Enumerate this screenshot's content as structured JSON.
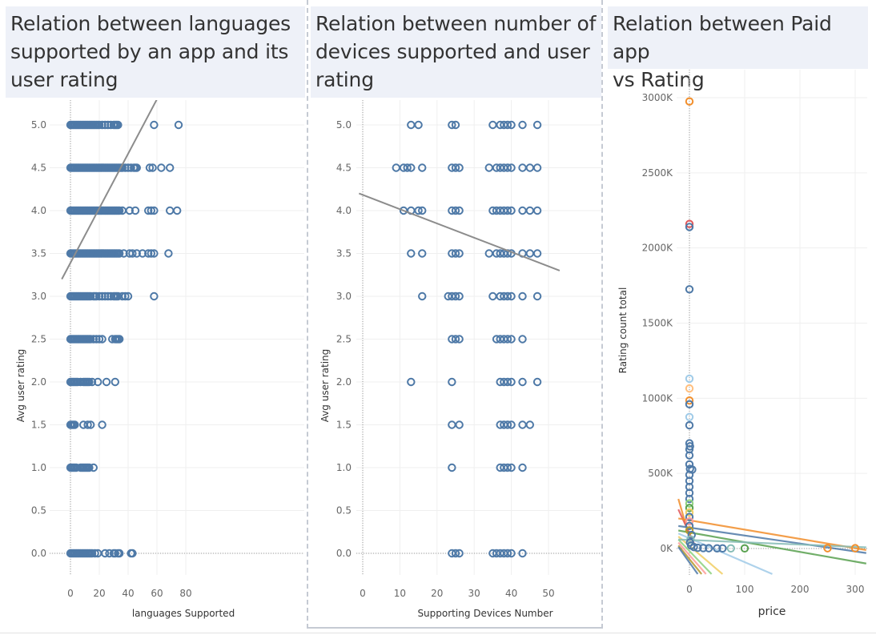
{
  "colors": {
    "point": "#4e79a7",
    "trend": "#8c8c8c",
    "title_bg": "#eef1f8",
    "grid": "#eeeeee"
  },
  "chart_data": [
    {
      "type": "scatter",
      "title": "Relation between languages supported by an app and its user rating",
      "title_lines": [
        "Relation between languages",
        "supported by an app and its",
        "user rating"
      ],
      "xlabel": "languages Supported",
      "ylabel": "Avg user rating",
      "xlim": [
        -3,
        81
      ],
      "ylim": [
        -0.2,
        5.3
      ],
      "x_ticks": [
        0,
        20,
        40,
        60,
        80
      ],
      "y_ticks": [
        0.0,
        0.5,
        1.0,
        1.5,
        2.0,
        2.5,
        3.0,
        3.5,
        4.0,
        4.5,
        5.0
      ],
      "grid": true,
      "trend_line": {
        "from": [
          -6,
          3.2
        ],
        "to": [
          60,
          5.3
        ]
      },
      "rows": [
        {
          "y": 5.0,
          "x": [
            0,
            1,
            2,
            3,
            4,
            5,
            6,
            7,
            8,
            9,
            10,
            11,
            12,
            13,
            14,
            15,
            16,
            17,
            18,
            19,
            20,
            22,
            24,
            26,
            28,
            30,
            31,
            32,
            33,
            58,
            75
          ]
        },
        {
          "y": 4.5,
          "x": [
            0,
            1,
            2,
            3,
            4,
            5,
            6,
            7,
            8,
            9,
            10,
            11,
            12,
            13,
            14,
            15,
            16,
            17,
            18,
            19,
            20,
            21,
            22,
            23,
            24,
            25,
            26,
            27,
            28,
            29,
            30,
            31,
            32,
            33,
            34,
            35,
            36,
            38,
            40,
            42,
            44,
            45,
            46,
            55,
            57,
            63,
            69
          ]
        },
        {
          "y": 4.0,
          "x": [
            0,
            1,
            2,
            3,
            4,
            5,
            6,
            7,
            8,
            9,
            10,
            11,
            12,
            13,
            14,
            15,
            16,
            17,
            18,
            19,
            20,
            21,
            22,
            23,
            24,
            25,
            26,
            27,
            28,
            29,
            30,
            31,
            32,
            33,
            34,
            36,
            41,
            45,
            54,
            56,
            58,
            69,
            74
          ]
        },
        {
          "y": 3.5,
          "x": [
            0,
            1,
            2,
            3,
            4,
            5,
            6,
            7,
            8,
            9,
            10,
            11,
            12,
            13,
            14,
            15,
            16,
            17,
            18,
            19,
            20,
            21,
            22,
            23,
            24,
            25,
            26,
            27,
            28,
            29,
            30,
            31,
            32,
            33,
            34,
            37,
            41,
            43,
            46,
            50,
            54,
            56,
            58,
            68
          ]
        },
        {
          "y": 3.0,
          "x": [
            0,
            1,
            2,
            3,
            4,
            5,
            6,
            7,
            8,
            9,
            10,
            11,
            12,
            13,
            14,
            16,
            17,
            18,
            20,
            22,
            24,
            26,
            28,
            30,
            31,
            32,
            33,
            36,
            38,
            40,
            58
          ]
        },
        {
          "y": 2.5,
          "x": [
            0,
            1,
            2,
            3,
            4,
            5,
            6,
            7,
            8,
            9,
            10,
            11,
            12,
            13,
            14,
            16,
            18,
            20,
            22,
            29,
            31,
            32,
            33,
            34
          ]
        },
        {
          "y": 2.0,
          "x": [
            0,
            1,
            2,
            3,
            4,
            5,
            7,
            9,
            10,
            11,
            12,
            13,
            15,
            19,
            25,
            31
          ]
        },
        {
          "y": 1.5,
          "x": [
            0,
            1,
            2,
            3,
            9,
            12,
            14,
            22
          ]
        },
        {
          "y": 1.0,
          "x": [
            0,
            1,
            2,
            3,
            4,
            7,
            8,
            9,
            10,
            11,
            12,
            13,
            16
          ]
        },
        {
          "y": 0.0,
          "x": [
            0,
            1,
            2,
            3,
            4,
            5,
            6,
            7,
            8,
            9,
            10,
            11,
            12,
            13,
            14,
            15,
            17,
            19,
            24,
            27,
            30,
            31,
            33,
            34,
            42,
            43
          ]
        }
      ]
    },
    {
      "type": "scatter",
      "title": "Relation between number of devices supported and user rating",
      "title_lines": [
        "Relation between number of",
        "devices supported and user",
        "rating"
      ],
      "xlabel": "Supporting Devices Number",
      "ylabel": "Avg user rating",
      "xlim": [
        0,
        51
      ],
      "ylim": [
        -0.2,
        5.3
      ],
      "x_ticks": [
        0,
        10,
        20,
        30,
        40,
        50
      ],
      "y_ticks": [
        0.0,
        0.5,
        1.0,
        1.5,
        2.0,
        2.5,
        3.0,
        3.5,
        4.0,
        4.5,
        5.0
      ],
      "grid": true,
      "trend_line": {
        "from": [
          -1,
          4.2
        ],
        "to": [
          53,
          3.3
        ]
      },
      "rows": [
        {
          "y": 5.0,
          "x": [
            13,
            15,
            24,
            25,
            35,
            37,
            38,
            39,
            40,
            43,
            47
          ]
        },
        {
          "y": 4.5,
          "x": [
            9,
            11,
            12,
            13,
            16,
            24,
            25,
            26,
            34,
            36,
            37,
            38,
            39,
            40,
            43,
            45,
            47
          ]
        },
        {
          "y": 4.0,
          "x": [
            11,
            13,
            15,
            16,
            24,
            25,
            26,
            35,
            36,
            37,
            38,
            39,
            40,
            43,
            45,
            47
          ]
        },
        {
          "y": 3.5,
          "x": [
            13,
            16,
            24,
            25,
            26,
            34,
            36,
            37,
            38,
            39,
            40,
            43,
            45,
            47
          ]
        },
        {
          "y": 3.0,
          "x": [
            16,
            23,
            24,
            25,
            26,
            35,
            37,
            38,
            39,
            40,
            43,
            47
          ]
        },
        {
          "y": 2.5,
          "x": [
            24,
            25,
            26,
            36,
            37,
            38,
            39,
            40,
            43
          ]
        },
        {
          "y": 2.0,
          "x": [
            13,
            24,
            37,
            38,
            39,
            40,
            43,
            47
          ]
        },
        {
          "y": 1.5,
          "x": [
            24,
            26,
            37,
            38,
            39,
            40,
            43,
            45
          ]
        },
        {
          "y": 1.0,
          "x": [
            24,
            37,
            38,
            39,
            40,
            43
          ]
        },
        {
          "y": 0.0,
          "x": [
            24,
            25,
            26,
            35,
            36,
            37,
            38,
            39,
            40,
            43
          ]
        }
      ]
    },
    {
      "type": "scatter",
      "title": "Relation between Paid app vs Rating",
      "title_lines": [
        "Relation between Paid app",
        "vs Rating"
      ],
      "xlabel": "price",
      "ylabel": "Rating count total",
      "xlim": [
        -20,
        320
      ],
      "ylim": [
        -170000,
        3100000
      ],
      "x_ticks": [
        0,
        100,
        200,
        300
      ],
      "y_tick_values": [
        0,
        500000,
        1000000,
        1500000,
        2000000,
        2500000,
        3000000
      ],
      "y_tick_labels": [
        "0K",
        "500K",
        "1000K",
        "1500K",
        "2000K",
        "2500K",
        "3000K"
      ],
      "grid": true,
      "points": [
        {
          "x": 0,
          "y": 2975000,
          "c": "#f28e2b"
        },
        {
          "x": 0,
          "y": 2160000,
          "c": "#e15759"
        },
        {
          "x": 0,
          "y": 2140000,
          "c": "#4e79a7"
        },
        {
          "x": 0,
          "y": 1725000,
          "c": "#4e79a7"
        },
        {
          "x": 0,
          "y": 1130000,
          "c": "#a0cbe8"
        },
        {
          "x": 0,
          "y": 1065000,
          "c": "#ffbe7d"
        },
        {
          "x": 0,
          "y": 985000,
          "c": "#f28e2b"
        },
        {
          "x": 0,
          "y": 960000,
          "c": "#4e79a7"
        },
        {
          "x": 0,
          "y": 875000,
          "c": "#a0cbe8"
        },
        {
          "x": 0,
          "y": 820000,
          "c": "#4e79a7"
        },
        {
          "x": 0,
          "y": 700000,
          "c": "#4e79a7"
        },
        {
          "x": 1,
          "y": 680000,
          "c": "#4e79a7"
        },
        {
          "x": 0,
          "y": 660000,
          "c": "#4e79a7"
        },
        {
          "x": 0,
          "y": 620000,
          "c": "#4e79a7"
        },
        {
          "x": 0,
          "y": 560000,
          "c": "#4e79a7"
        },
        {
          "x": 1,
          "y": 530000,
          "c": "#4e79a7"
        },
        {
          "x": 5,
          "y": 525000,
          "c": "#4e79a7"
        },
        {
          "x": 0,
          "y": 490000,
          "c": "#4e79a7"
        },
        {
          "x": 0,
          "y": 450000,
          "c": "#4e79a7"
        },
        {
          "x": 0,
          "y": 410000,
          "c": "#4e79a7"
        },
        {
          "x": 0,
          "y": 370000,
          "c": "#4e79a7"
        },
        {
          "x": 0,
          "y": 330000,
          "c": "#4e79a7"
        },
        {
          "x": 0,
          "y": 300000,
          "c": "#8cd17d"
        },
        {
          "x": 0,
          "y": 270000,
          "c": "#59a14f"
        },
        {
          "x": 0,
          "y": 240000,
          "c": "#f1ce63"
        },
        {
          "x": 0,
          "y": 210000,
          "c": "#4e79a7"
        },
        {
          "x": 0,
          "y": 180000,
          "c": "#ff9d9a"
        },
        {
          "x": 0,
          "y": 150000,
          "c": "#4e79a7"
        },
        {
          "x": 0,
          "y": 120000,
          "c": "#b6992d"
        },
        {
          "x": 4,
          "y": 90000,
          "c": "#4e79a7"
        },
        {
          "x": 2,
          "y": 60000,
          "c": "#86bcb6"
        },
        {
          "x": 1,
          "y": 40000,
          "c": "#4e79a7"
        },
        {
          "x": 3,
          "y": 20000,
          "c": "#4e79a7"
        },
        {
          "x": 8,
          "y": 10000,
          "c": "#4e79a7"
        },
        {
          "x": 15,
          "y": 5000,
          "c": "#4e79a7"
        },
        {
          "x": 25,
          "y": 3000,
          "c": "#4e79a7"
        },
        {
          "x": 35,
          "y": 2000,
          "c": "#4e79a7"
        },
        {
          "x": 50,
          "y": 1000,
          "c": "#4e79a7"
        },
        {
          "x": 60,
          "y": 1000,
          "c": "#4e79a7"
        },
        {
          "x": 75,
          "y": 1000,
          "c": "#86bcb6"
        },
        {
          "x": 100,
          "y": 1000,
          "c": "#59a14f"
        },
        {
          "x": 250,
          "y": 2000,
          "c": "#f28e2b"
        },
        {
          "x": 300,
          "y": 2000,
          "c": "#f28e2b"
        }
      ],
      "trend_lines": [
        {
          "from": [
            -20,
            330000
          ],
          "to": [
            2,
            50000
          ],
          "c": "#f28e2b"
        },
        {
          "from": [
            -20,
            260000
          ],
          "to": [
            10,
            20000
          ],
          "c": "#e15759"
        },
        {
          "from": [
            -20,
            200000
          ],
          "to": [
            320,
            -10000
          ],
          "c": "#f28e2b"
        },
        {
          "from": [
            -20,
            150000
          ],
          "to": [
            320,
            -30000
          ],
          "c": "#4e79a7"
        },
        {
          "from": [
            -20,
            120000
          ],
          "to": [
            320,
            -100000
          ],
          "c": "#59a14f"
        },
        {
          "from": [
            -20,
            100000
          ],
          "to": [
            150,
            -170000
          ],
          "c": "#a0cbe8"
        },
        {
          "from": [
            -20,
            80000
          ],
          "to": [
            60,
            -170000
          ],
          "c": "#f1ce63"
        },
        {
          "from": [
            -20,
            60000
          ],
          "to": [
            40,
            -170000
          ],
          "c": "#8cd17d"
        },
        {
          "from": [
            -20,
            40000
          ],
          "to": [
            30,
            -170000
          ],
          "c": "#ff9d9a"
        },
        {
          "from": [
            -20,
            20000
          ],
          "to": [
            22,
            -170000
          ],
          "c": "#b6992d"
        },
        {
          "from": [
            -20,
            60000
          ],
          "to": [
            320,
            8000
          ],
          "c": "#86bcb6"
        },
        {
          "from": [
            -20,
            10000
          ],
          "to": [
            15,
            -170000
          ],
          "c": "#4e79a7"
        }
      ]
    }
  ]
}
